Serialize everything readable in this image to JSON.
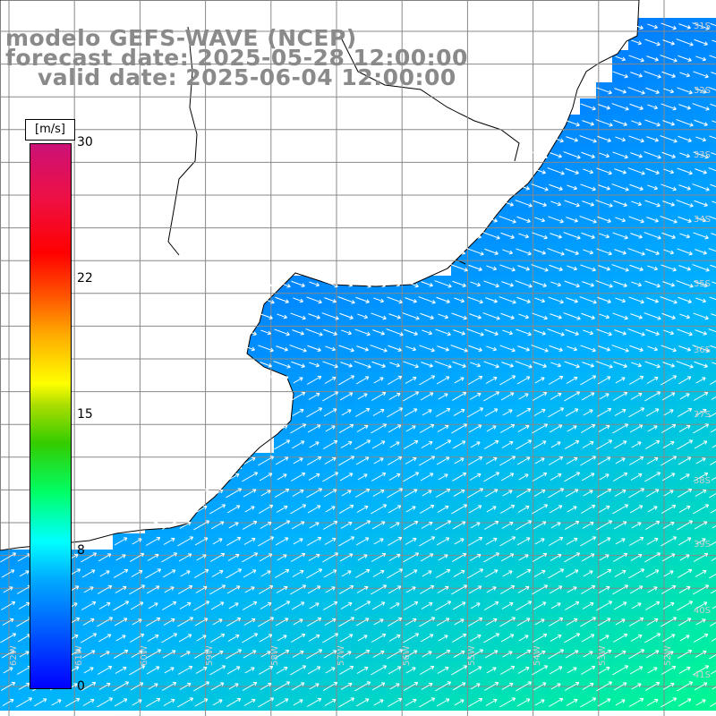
{
  "title": {
    "line1": "modelo GEFS-WAVE (NCEP)",
    "line2": "forecast date: 2025-05-28 12:00:00",
    "line3": "valid date: 2025-06-04 12:00:00"
  },
  "legend": {
    "unit": "[m/s]",
    "ticks": [
      "30",
      "22",
      "15",
      "8",
      "0"
    ],
    "colors": [
      "#0000ff",
      "#00aaff",
      "#00ffff",
      "#33cc00",
      "#ffff00",
      "#ff0000",
      "#cc1177"
    ]
  },
  "lat_labels": [
    "31S",
    "32S",
    "33S",
    "34S",
    "35S",
    "36S",
    "37S",
    "38S",
    "39S",
    "40S",
    "41S"
  ],
  "lon_labels": [
    "62W",
    "61W",
    "60W",
    "59W",
    "58W",
    "57W",
    "56W",
    "55W",
    "54W",
    "53W",
    "52W"
  ],
  "icons": [
    "wind-arrow-icon"
  ]
}
